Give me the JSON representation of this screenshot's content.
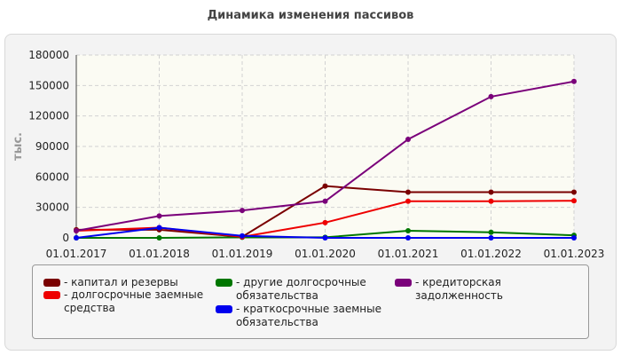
{
  "chart_data": {
    "type": "line",
    "title": "Динамика изменения пассивов",
    "ylabel": "тыс.",
    "xlabel": "",
    "categories": [
      "01.01.2017",
      "01.01.2018",
      "01.01.2019",
      "01.01.2020",
      "01.01.2021",
      "01.01.2022",
      "01.01.2023"
    ],
    "ylim": [
      0,
      180000
    ],
    "yticks": [
      "0",
      "30000",
      "60000",
      "90000",
      "120000",
      "150000",
      "180000"
    ],
    "grid": true,
    "legend_position": "bottom",
    "series": [
      {
        "name": "капитал и резервы",
        "color": "#7a0000",
        "values": [
          8000,
          8000,
          1000,
          51000,
          45000,
          45000,
          45000
        ]
      },
      {
        "name": "долгосрочные заемные средства",
        "color": "#ee0000",
        "values": [
          7000,
          10000,
          1000,
          15000,
          36000,
          36000,
          36500
        ]
      },
      {
        "name": "другие долгосрочные обязательства",
        "color": "#007700",
        "values": [
          0,
          0,
          500,
          500,
          7000,
          5500,
          2500
        ]
      },
      {
        "name": "краткосрочные заемные обязательства",
        "color": "#0000ee",
        "values": [
          0,
          10000,
          2000,
          0,
          0,
          0,
          0
        ]
      },
      {
        "name": "кредиторская задолженность",
        "color": "#7a007a",
        "values": [
          7000,
          21500,
          27000,
          36000,
          97000,
          139000,
          154000
        ]
      }
    ]
  },
  "legend": [
    {
      "text": "- капитал и резервы",
      "color": "#7a0000"
    },
    {
      "text": "- долгосрочные заемные средства",
      "color": "#ee0000"
    },
    {
      "text": "- другие долгосрочные обязательства",
      "color": "#007700"
    },
    {
      "text": "- краткосрочные заемные обязательства",
      "color": "#0000ee"
    },
    {
      "text": "- кредиторская задолженность",
      "color": "#7a007a"
    }
  ]
}
